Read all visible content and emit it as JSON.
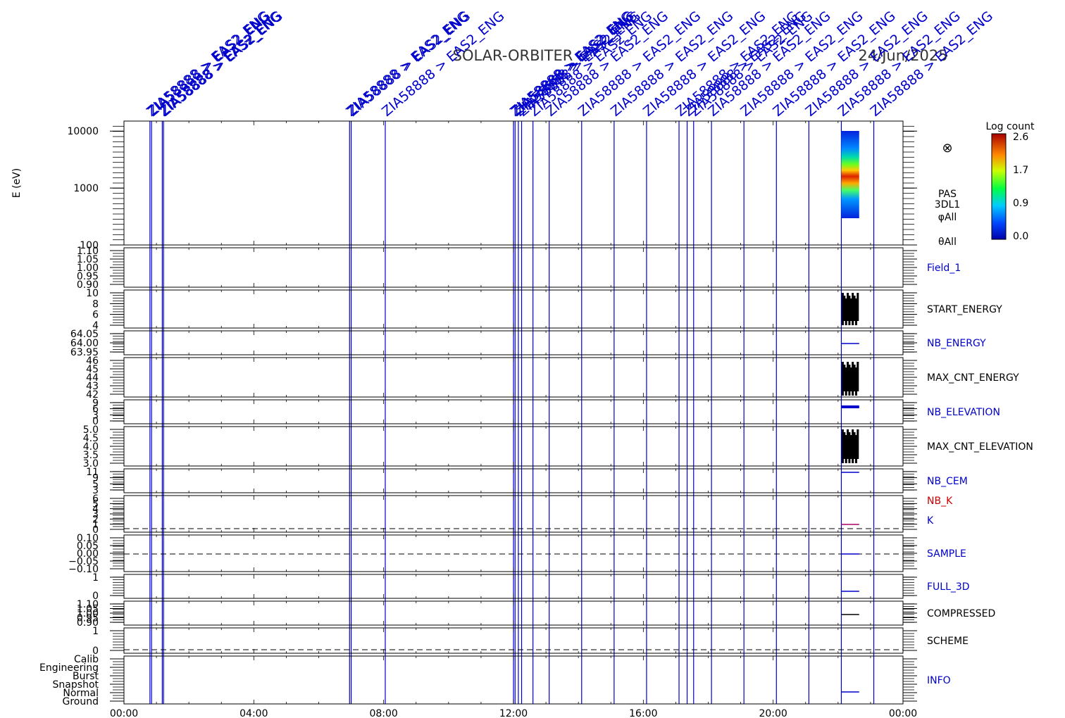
{
  "chart_data": {
    "type": "multi-panel time series",
    "title": "SOLAR-ORBITER",
    "date": "24/Jun/2025",
    "x_ticks": [
      "00:00",
      "04:00",
      "08:00",
      "12:00",
      "16:00",
      "20:00",
      "00:00"
    ],
    "x_range_hours": [
      0,
      24
    ],
    "event_marker_label": "ZIA58888 > EAS2_ENG",
    "event_markers_hours": [
      0.8,
      0.85,
      1.18,
      1.22,
      6.95,
      7.0,
      8.05,
      12.0,
      12.05,
      12.15,
      12.25,
      12.6,
      13.1,
      14.1,
      15.1,
      16.1,
      17.1,
      17.35,
      17.55,
      18.1,
      19.1,
      20.1,
      21.1,
      22.1,
      23.1
    ],
    "data_interval_hours": [
      22.1,
      22.65
    ],
    "panels": [
      {
        "name": "spectrogram",
        "ylabel": "E (eV)",
        "yscale": "log",
        "ylim": [
          100,
          15000
        ],
        "yticks": [
          "10000",
          "1000",
          "100"
        ],
        "right_labels": [
          "PAS",
          "3DL1",
          "φAll",
          "θAll"
        ]
      },
      {
        "name": "Field_1",
        "label": "Field_1",
        "label_color": "#0000cc",
        "yticks": [
          "1.10",
          "1.05",
          "1.00",
          "0.95",
          "0.90"
        ]
      },
      {
        "name": "START_ENERGY",
        "label": "START_ENERGY",
        "label_color": "#000000",
        "yticks": [
          "10",
          "8",
          "6",
          "4"
        ]
      },
      {
        "name": "NB_ENERGY",
        "label": "NB_ENERGY",
        "label_color": "#0000cc",
        "yticks": [
          "64.05",
          "64.00",
          "63.95"
        ]
      },
      {
        "name": "MAX_CNT_ENERGY",
        "label": "MAX_CNT_ENERGY",
        "label_color": "#000000",
        "yticks": [
          "46",
          "45",
          "44",
          "43",
          "42"
        ]
      },
      {
        "name": "NB_ELEVATION",
        "label": "NB_ELEVATION",
        "label_color": "#0000cc",
        "yticks": [
          "9",
          "6",
          "3",
          "0"
        ]
      },
      {
        "name": "MAX_CNT_ELEVATION",
        "label": "MAX_CNT_ELEVATION",
        "label_color": "#000000",
        "yticks": [
          "5.0",
          "4.5",
          "4.0",
          "3.5",
          "3.0"
        ]
      },
      {
        "name": "NB_CEM",
        "label": "NB_CEM",
        "label_color": "#0000cc",
        "yticks": [
          "11",
          "9",
          "5",
          "3"
        ]
      },
      {
        "name": "NB_K",
        "label": "NB_K",
        "label_color": "#cc0000",
        "label2": "K",
        "label2_color": "#0000cc",
        "yticks": [
          "6",
          "5",
          "4",
          "3",
          "2",
          "1",
          "0"
        ]
      },
      {
        "name": "SAMPLE",
        "label": "SAMPLE",
        "label_color": "#0000cc",
        "yticks": [
          "0.10",
          "0.05",
          "0.00",
          "−0.05",
          "−0.10"
        ]
      },
      {
        "name": "FULL_3D",
        "label": "FULL_3D",
        "label_color": "#0000cc",
        "yticks": [
          "1",
          "0"
        ]
      },
      {
        "name": "COMPRESSED",
        "label": "COMPRESSED",
        "label_color": "#000000",
        "yticks": [
          "1.10",
          "1.05",
          "1.00",
          "0.95",
          "0.90"
        ]
      },
      {
        "name": "SCHEME",
        "label": "SCHEME",
        "label_color": "#000000",
        "yticks": [
          "1",
          "0"
        ]
      },
      {
        "name": "INFO",
        "label": "INFO",
        "label_color": "#0000cc",
        "yticks": [
          "Calib",
          "Engineering",
          "Burst",
          "Snapshot",
          "Normal",
          "Ground"
        ]
      }
    ],
    "colorbar": {
      "title": "Log count",
      "ticks": [
        "2.6",
        "1.7",
        "0.9",
        "0.0"
      ],
      "range": [
        0.0,
        2.6
      ]
    }
  }
}
